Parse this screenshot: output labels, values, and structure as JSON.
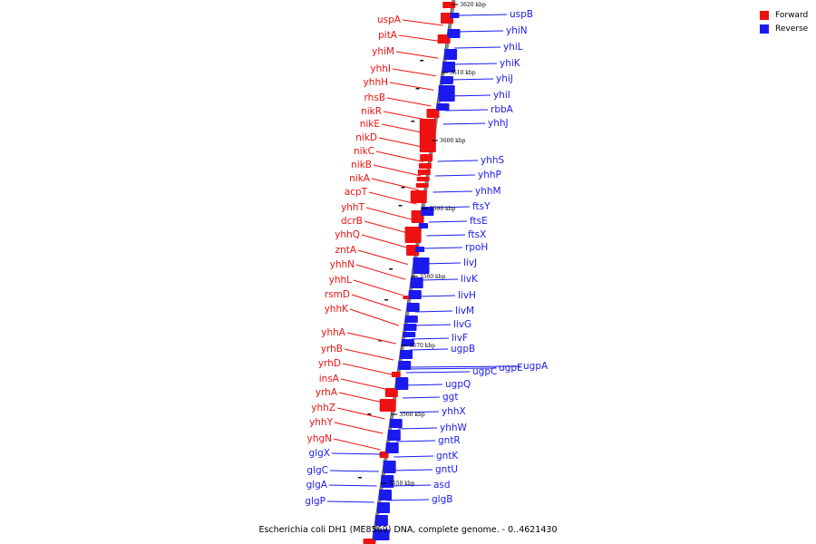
{
  "title": "Escherichia coli DH1 (ME8569) DNA, complete genome. - 0..4621430",
  "legend": [
    {
      "label": "Forward",
      "color": "#ee1111"
    },
    {
      "label": "Reverse",
      "color": "#1a1aee"
    }
  ],
  "colors": {
    "forward": "#ee1111",
    "reverse": "#1a1aee",
    "backbone": "#888888"
  },
  "ticks": [
    "3620 kbp",
    "3610 kbp",
    "3600 kbp",
    "3590 kbp",
    "3580 kbp",
    "3570 kbp",
    "3560 kbp",
    "3550 kbp"
  ],
  "forward_genes": [
    "uspA",
    "pitA",
    "yhiM",
    "yhhI",
    "yhhH",
    "rhsB",
    "nikR",
    "nikE",
    "nikD",
    "nikC",
    "nikB",
    "nikA",
    "acpT",
    "yhhT",
    "dcrB",
    "yhhQ",
    "zntA",
    "yhhN",
    "yhhL",
    "rsmD",
    "yhhK",
    "yhhA",
    "yrhB",
    "yrhD",
    "insA",
    "yrhA",
    "yhhZ",
    "yhhY",
    "yhgN"
  ],
  "reverse_genes": [
    "uspB",
    "yhiN",
    "yhiL",
    "yhiK",
    "yhiJ",
    "yhiI",
    "rbbA",
    "yhhJ",
    "yhhS",
    "yhhP",
    "yhhM",
    "ftsY",
    "ftsE",
    "ftsX",
    "rpoH",
    "livJ",
    "livK",
    "livH",
    "livM",
    "livG",
    "livF",
    "ugpB",
    "ugpC",
    "ugpE",
    "ugpA",
    "ugpQ",
    "ggt",
    "yhhX",
    "yhhW",
    "gntR",
    "gntK",
    "gntU",
    "asd",
    "glgB",
    "glgX",
    "glgC",
    "glgA",
    "glgP"
  ]
}
